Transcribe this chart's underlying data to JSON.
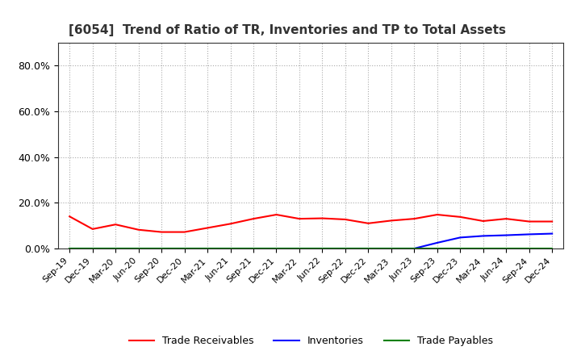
{
  "title": "[6054]  Trend of Ratio of TR, Inventories and TP to Total Assets",
  "x_labels": [
    "Sep-19",
    "Dec-19",
    "Mar-20",
    "Jun-20",
    "Sep-20",
    "Dec-20",
    "Mar-21",
    "Jun-21",
    "Sep-21",
    "Dec-21",
    "Mar-22",
    "Jun-22",
    "Sep-22",
    "Dec-22",
    "Mar-23",
    "Jun-23",
    "Sep-23",
    "Dec-23",
    "Mar-24",
    "Jun-24",
    "Sep-24",
    "Dec-24"
  ],
  "trade_receivables": [
    0.14,
    0.085,
    0.105,
    0.082,
    0.072,
    0.072,
    0.09,
    0.108,
    0.13,
    0.148,
    0.13,
    0.132,
    0.127,
    0.11,
    0.122,
    0.13,
    0.148,
    0.138,
    0.12,
    0.13,
    0.118,
    0.118
  ],
  "inventories": [
    0.0,
    0.0,
    0.0,
    0.0,
    0.0,
    0.0,
    0.0,
    0.0,
    0.0,
    0.0,
    0.0,
    0.0,
    0.0,
    0.0,
    0.0,
    0.0,
    0.025,
    0.048,
    0.055,
    0.058,
    0.062,
    0.065
  ],
  "trade_payables": [
    0.0,
    0.0,
    0.0,
    0.0,
    0.0,
    0.0,
    0.0,
    0.0,
    0.0,
    0.0,
    0.0,
    0.0,
    0.0,
    0.0,
    0.0,
    0.0,
    0.0,
    0.0,
    0.0,
    0.0,
    0.0,
    0.0
  ],
  "tr_color": "#ff0000",
  "inv_color": "#0000ff",
  "tp_color": "#008000",
  "ylim": [
    0.0,
    0.9
  ],
  "yticks": [
    0.0,
    0.2,
    0.4,
    0.6,
    0.8
  ],
  "legend_labels": [
    "Trade Receivables",
    "Inventories",
    "Trade Payables"
  ],
  "bg_color": "#ffffff",
  "grid_color": "#aaaaaa"
}
